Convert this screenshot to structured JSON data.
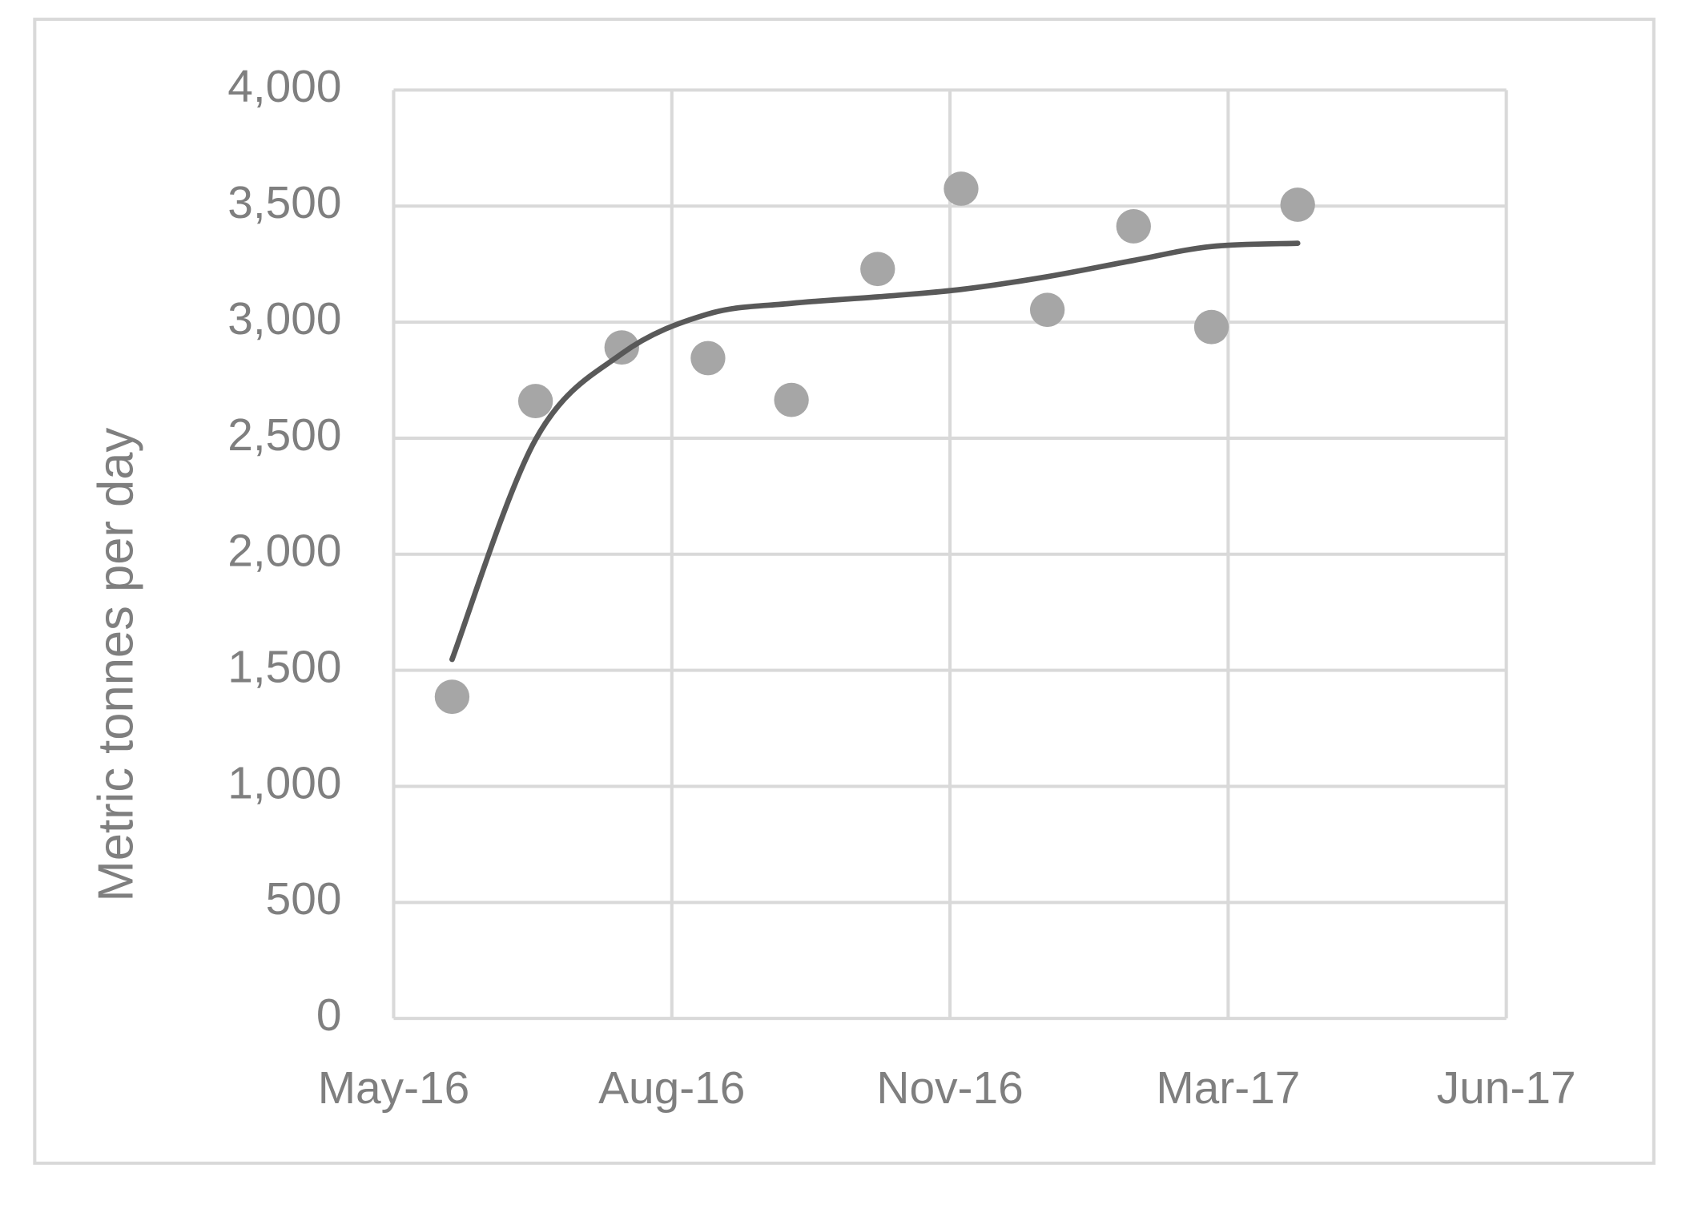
{
  "chart_data": {
    "type": "scatter",
    "ylabel": "Metric tonnes per day",
    "x": [
      42521,
      42551,
      42582,
      42613,
      42643,
      42674,
      42704,
      42735,
      42766,
      42794,
      42825
    ],
    "series": [
      {
        "mode": "markers",
        "color": "#a6a6a6",
        "values": [
          1386,
          2660,
          2891,
          2845,
          2665,
          3229,
          3575,
          3053,
          3413,
          2979,
          3506
        ]
      },
      {
        "mode": "line",
        "color": "#595959",
        "values": [
          1547,
          2494,
          2864,
          3035,
          3081,
          3109,
          3141,
          3196,
          3266,
          3326,
          3340
        ]
      }
    ],
    "xlim": [
      42500,
      42900
    ],
    "xticks": [
      {
        "value": 42500,
        "label": "May-16"
      },
      {
        "value": 42600,
        "label": "Aug-16"
      },
      {
        "value": 42700,
        "label": "Nov-16"
      },
      {
        "value": 42800,
        "label": "Mar-17"
      },
      {
        "value": 42900,
        "label": "Jun-17"
      }
    ],
    "ylim": [
      0,
      4000
    ],
    "yticks": [
      0,
      500,
      {
        "value": 1000,
        "label": "1,000"
      },
      {
        "value": 1500,
        "label": "1,500"
      },
      {
        "value": 2000,
        "label": "2,000"
      },
      {
        "value": 2500,
        "label": "2,500"
      },
      {
        "value": 3000,
        "label": "3,000"
      },
      {
        "value": 3500,
        "label": "3,500"
      },
      {
        "value": 4000,
        "label": "4,000"
      }
    ],
    "grid": true,
    "grid_color": "#d9d9d9"
  }
}
